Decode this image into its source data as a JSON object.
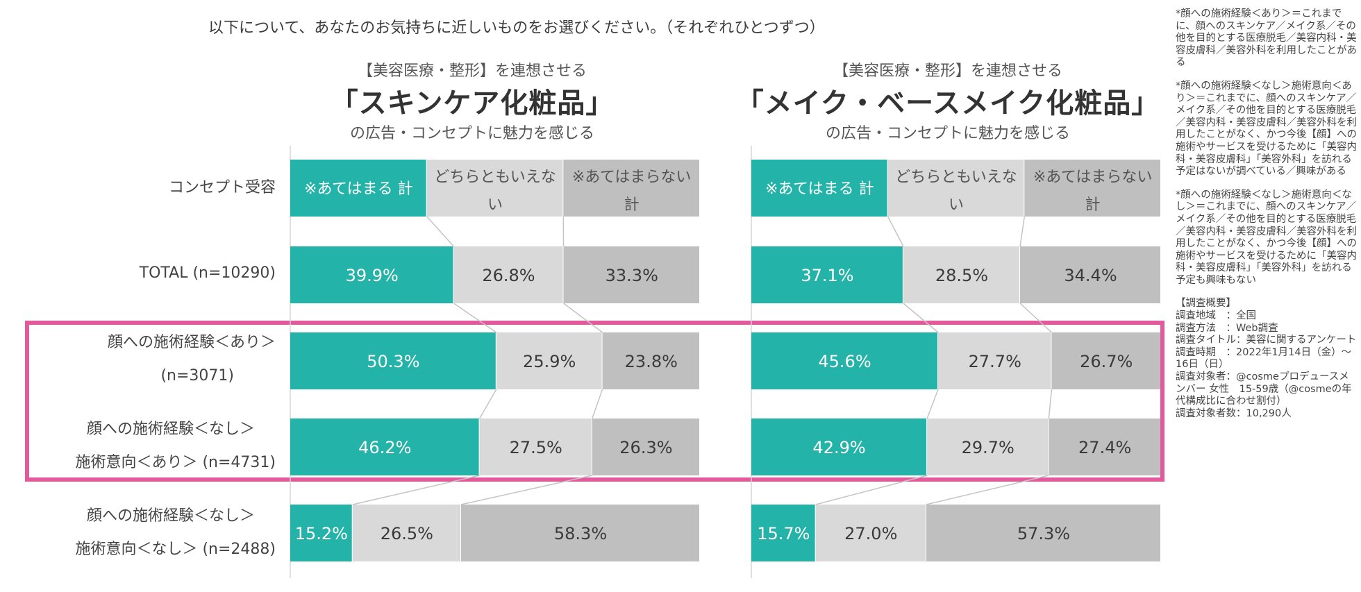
{
  "title": "以下について、あなたのお気持ちに近しいものをお選びください。（それぞれひとつずつ）",
  "colors": {
    "accent": "#24b3a8",
    "neutral": "#d9d9d9",
    "negative": "#bfbfbf",
    "highlight": "#e35a9c"
  },
  "panels": [
    {
      "sub": "【美容医療・整形】を連想させる",
      "main": "「スキンケア化粧品」",
      "tail": "の広告・コンセプトに魅力を感じる"
    },
    {
      "sub": "【美容医療・整形】を連想させる",
      "main": "「メイク・ベースメイク化粧品」",
      "tail": "の広告・コンセプトに魅力を感じる"
    }
  ],
  "legend_row_label": "コンセプト受容",
  "legend": [
    "※あてはまる 計",
    "どちらともいえない",
    "※あてはまらない 計"
  ],
  "rows": [
    {
      "line1": "TOTAL (n=10290)",
      "line2": ""
    },
    {
      "line1": "顔への施術経験＜あり＞",
      "line2": "(n=3071)"
    },
    {
      "line1": "顔への施術経験＜なし＞",
      "line2": "施術意向＜あり＞ (n=4731)"
    },
    {
      "line1": "顔への施術経験＜なし＞",
      "line2": "施術意向＜なし＞ (n=2488)"
    }
  ],
  "chart_data": [
    {
      "type": "bar",
      "stacked": "100%",
      "orientation": "horizontal",
      "title": "「スキンケア化粧品」",
      "categories": [
        "TOTAL (n=10290)",
        "顔への施術経験＜あり＞ (n=3071)",
        "顔への施術経験＜なし＞ 施術意向＜あり＞ (n=4731)",
        "顔への施術経験＜なし＞ 施術意向＜なし＞ (n=2488)"
      ],
      "series": [
        {
          "name": "※あてはまる 計",
          "values": [
            39.9,
            50.3,
            46.2,
            15.2
          ]
        },
        {
          "name": "どちらともいえない",
          "values": [
            26.8,
            25.9,
            27.5,
            26.5
          ]
        },
        {
          "name": "※あてはまらない 計",
          "values": [
            33.3,
            23.8,
            26.3,
            58.3
          ]
        }
      ],
      "labels": [
        [
          "39.9%",
          "26.8%",
          "33.3%"
        ],
        [
          "50.3%",
          "25.9%",
          "23.8%"
        ],
        [
          "46.2%",
          "27.5%",
          "26.3%"
        ],
        [
          "15.2%",
          "26.5%",
          "58.3%"
        ]
      ]
    },
    {
      "type": "bar",
      "stacked": "100%",
      "orientation": "horizontal",
      "title": "「メイク・ベースメイク化粧品」",
      "categories": [
        "TOTAL (n=10290)",
        "顔への施術経験＜あり＞ (n=3071)",
        "顔への施術経験＜なし＞ 施術意向＜あり＞ (n=4731)",
        "顔への施術経験＜なし＞ 施術意向＜なし＞ (n=2488)"
      ],
      "series": [
        {
          "name": "※あてはまる 計",
          "values": [
            37.1,
            45.6,
            42.9,
            15.7
          ]
        },
        {
          "name": "どちらともいえない",
          "values": [
            28.5,
            27.7,
            29.7,
            27.0
          ]
        },
        {
          "name": "※あてはまらない 計",
          "values": [
            34.4,
            26.7,
            27.4,
            57.3
          ]
        }
      ],
      "labels": [
        [
          "37.1%",
          "28.5%",
          "34.4%"
        ],
        [
          "45.6%",
          "27.7%",
          "26.7%"
        ],
        [
          "42.9%",
          "29.7%",
          "27.4%"
        ],
        [
          "15.7%",
          "27.0%",
          "57.3%"
        ]
      ]
    }
  ],
  "notes": [
    "*顔への施術経験＜あり＞＝これまでに、顔へのスキンケア／メイク系／その他を目的とする医療脱毛／美容内科・美容皮膚科／美容外科を利用したことがある",
    "*顔への施術経験＜なし＞施術意向＜あり＞＝これまでに、顔へのスキンケア／メイク系／その他を目的とする医療脱毛／美容内科・美容皮膚科／美容外科を利用したことがなく、かつ今後【顔】への施術やサービスを受けるために「美容内科・美容皮膚科」「美容外科」を訪れる予定はないが調べている／興味がある",
    "*顔への施術経験＜なし＞施術意向＜なし＞＝これまでに、顔へのスキンケア／メイク系／その他を目的とする医療脱毛／美容内科・美容皮膚科／美容外科を利用したことがなく、かつ今後【顔】への施術やサービスを受けるために「美容内科・美容皮膚科」「美容外科」を訪れる予定も興味もない"
  ],
  "survey": {
    "heading": "【調査概要】",
    "lines": [
      "調査地域　：全国",
      "調査方法　：Web調査",
      "調査タイトル：美容に関するアンケート",
      "調査時期　：2022年1月14日（金）～16日（日）",
      "調査対象者：@cosmeプロデュースメンバー 女性　15-59歳（@cosmeの年代構成比に合わせ割付）",
      "調査対象者数：10,290人"
    ]
  }
}
